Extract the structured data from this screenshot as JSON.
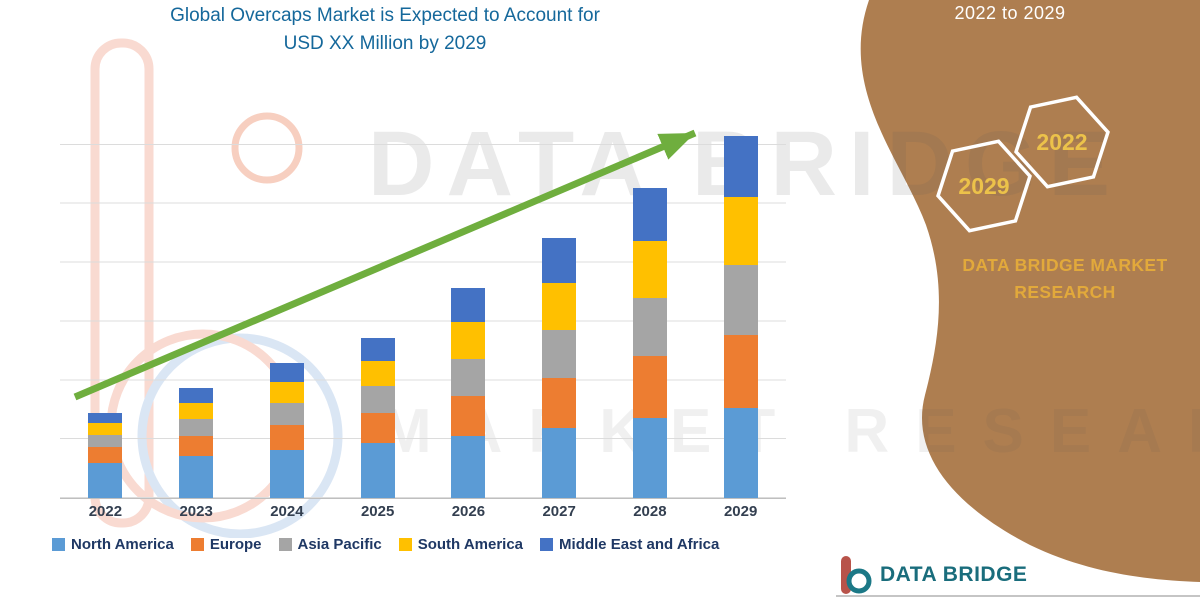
{
  "title": {
    "line1": "Global Overcaps Market is Expected to Account for",
    "line2": "USD XX Million by 2029",
    "color": "#15689B"
  },
  "chart_data": {
    "type": "bar",
    "stacked": true,
    "title": "Global Overcaps Market is Expected to Account for USD XX Million by 2029",
    "categories": [
      "2022",
      "2023",
      "2024",
      "2025",
      "2026",
      "2027",
      "2028",
      "2029"
    ],
    "series": [
      {
        "name": "North America",
        "color": "#5B9BD5",
        "values": [
          35,
          42,
          48,
          55,
          62,
          70,
          80,
          90
        ]
      },
      {
        "name": "Europe",
        "color": "#ED7D31",
        "values": [
          16,
          20,
          25,
          30,
          40,
          50,
          62,
          73
        ]
      },
      {
        "name": "Asia Pacific",
        "color": "#A5A5A5",
        "values": [
          12,
          17,
          22,
          27,
          37,
          48,
          58,
          70
        ]
      },
      {
        "name": "South America",
        "color": "#FFC000",
        "values": [
          12,
          16,
          21,
          25,
          37,
          47,
          57,
          68
        ]
      },
      {
        "name": "Middle East and Africa",
        "color": "#4472C4",
        "values": [
          10,
          15,
          19,
          23,
          34,
          45,
          53,
          61
        ]
      }
    ],
    "xlabel": "",
    "ylabel": "",
    "y_axis_labels_visible": false,
    "values_note": "Segment heights estimated from pixels; actual USD values shown as XX in source",
    "gridlines": true,
    "legend_position": "bottom",
    "trend_arrow_color": "#6FAE3E"
  },
  "side_panel": {
    "range_text": "2022 to 2029",
    "hexagons": [
      {
        "label": "2029"
      },
      {
        "label": "2022"
      }
    ],
    "brand_line1": "DATA BRIDGE MARKET",
    "brand_line2": "RESEARCH",
    "panel_color": "#AE7E50",
    "gold": "#ECC24A"
  },
  "watermark": {
    "line1": "DATA BRIDGE",
    "line2": "MARKET RESEARCH"
  },
  "footer": {
    "brand": "DATA BRIDGE"
  }
}
